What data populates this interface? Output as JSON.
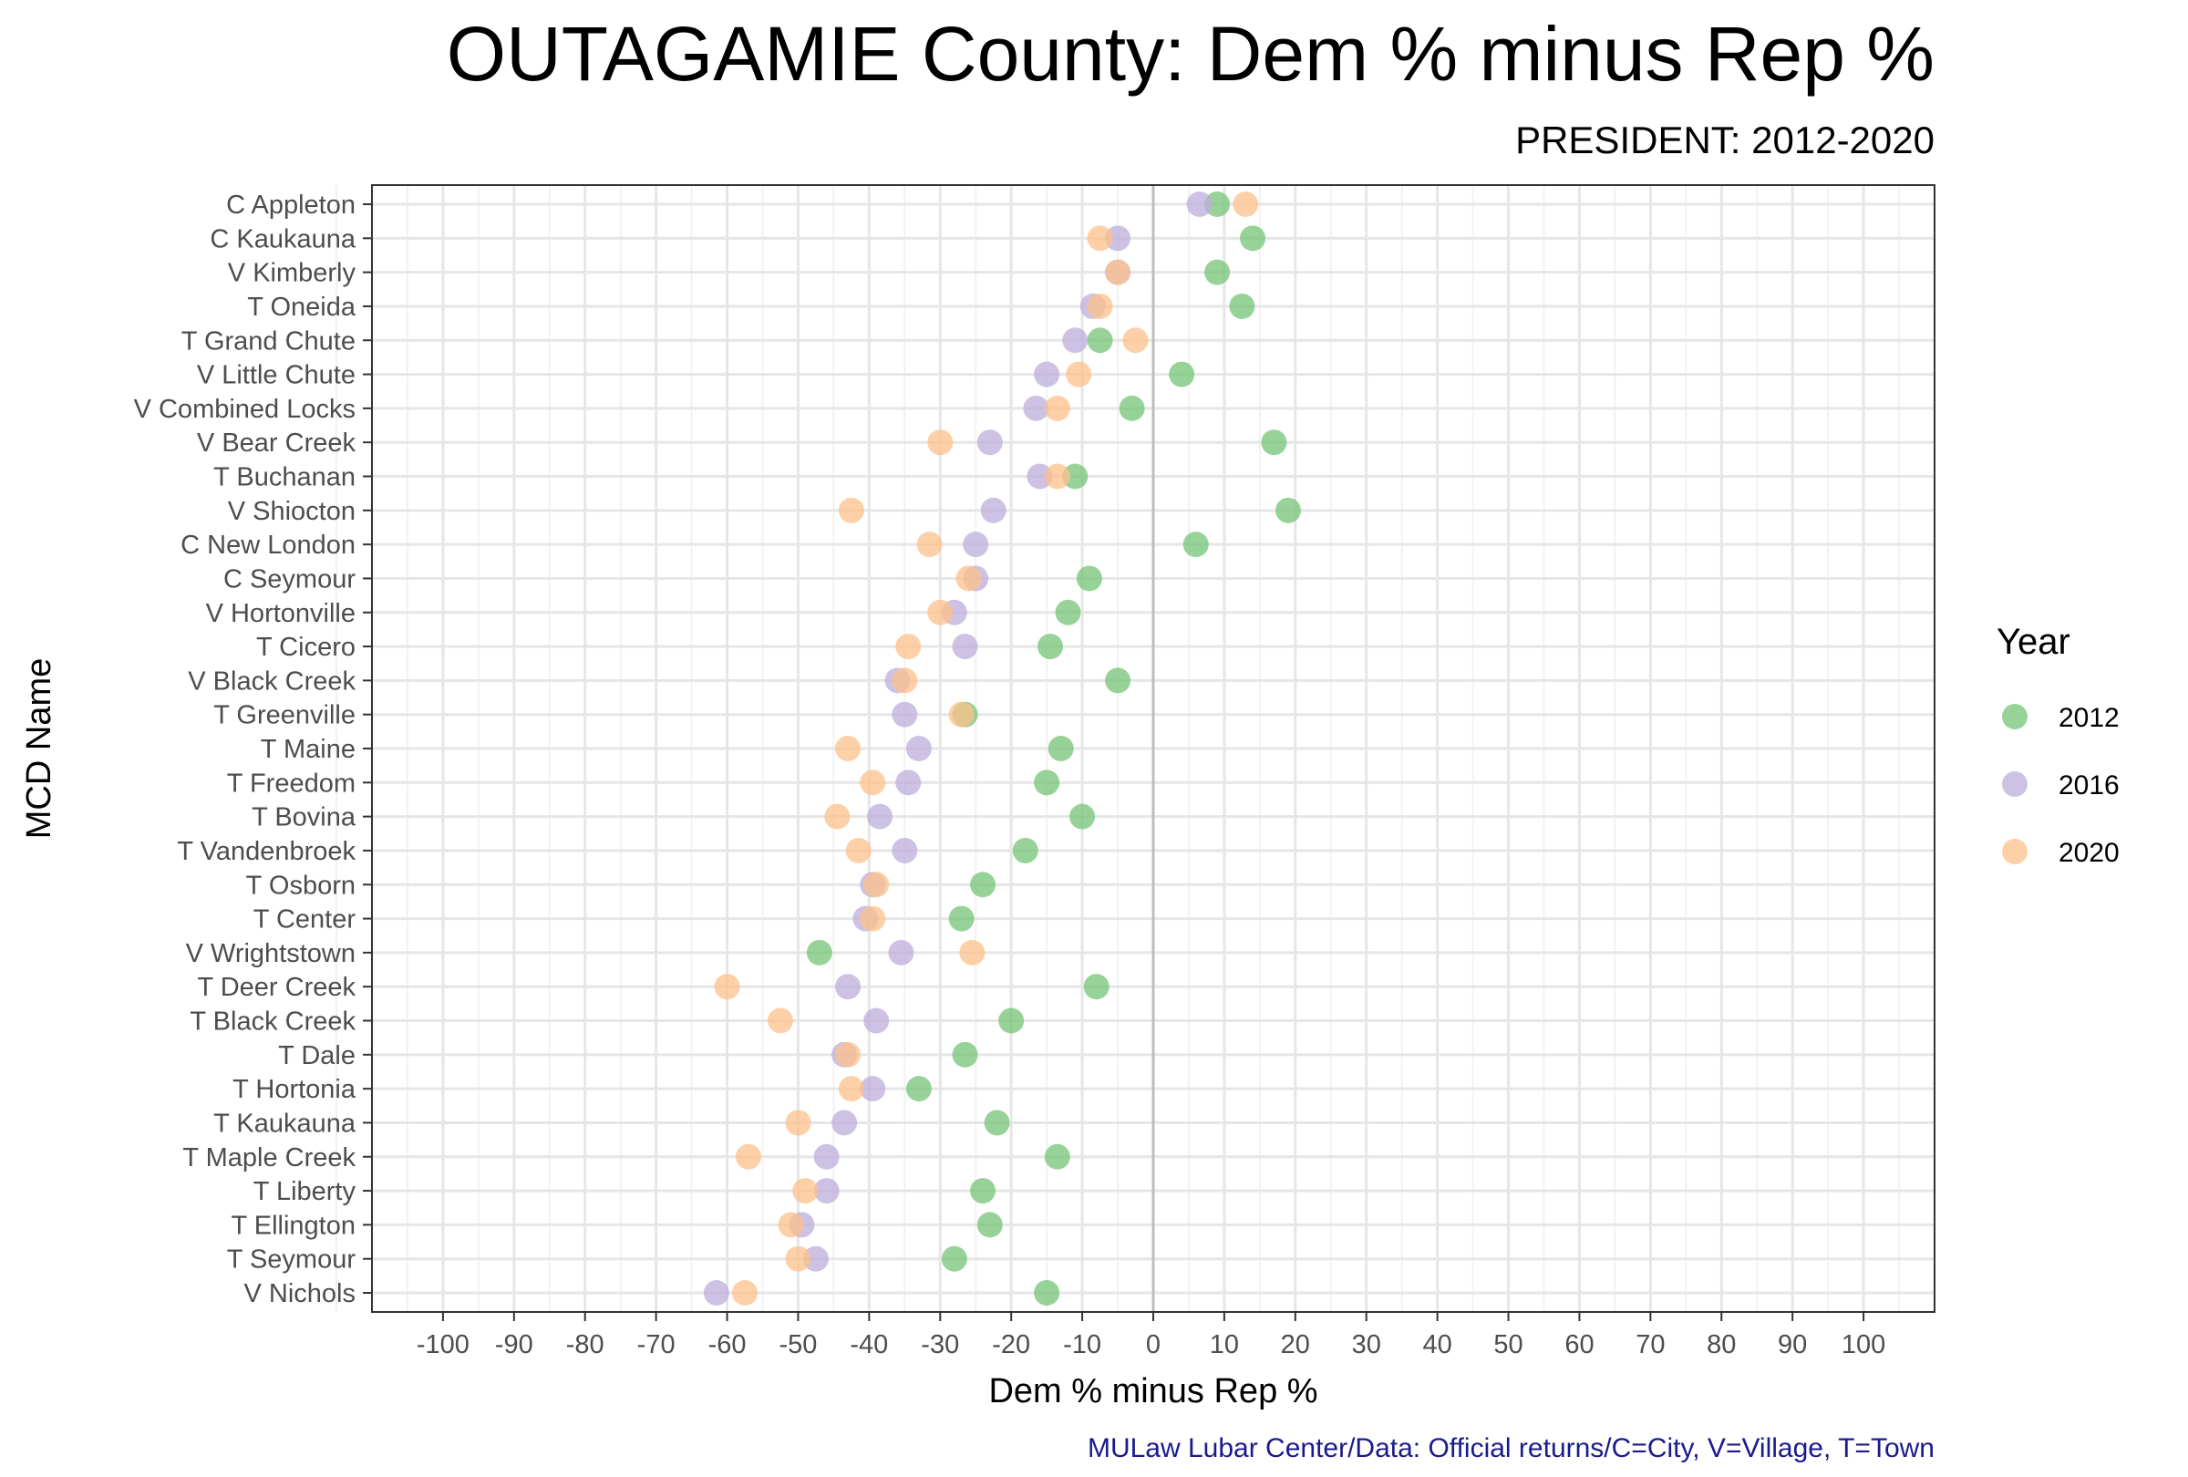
{
  "chart_data": {
    "type": "scatter",
    "title": "OUTAGAMIE County: Dem % minus Rep %",
    "subtitle": "PRESIDENT: 2012-2020",
    "xlabel": "Dem % minus Rep %",
    "ylabel": "MCD Name",
    "caption": "MULaw Lubar Center/Data: Official returns/C=City, V=Village, T=Town",
    "xlim": [
      -110,
      110
    ],
    "x_ticks": [
      -100,
      -90,
      -80,
      -70,
      -60,
      -50,
      -40,
      -30,
      -20,
      -10,
      0,
      10,
      20,
      30,
      40,
      50,
      60,
      70,
      80,
      90,
      100
    ],
    "grid": true,
    "reference_line_x": 0,
    "legend": {
      "title": "Year",
      "position": "right"
    },
    "categories": [
      "C Appleton",
      "C Kaukauna",
      "V Kimberly",
      "T Oneida",
      "T Grand Chute",
      "V Little Chute",
      "V Combined Locks",
      "V Bear Creek",
      "T Buchanan",
      "V Shiocton",
      "C New London",
      "C Seymour",
      "V Hortonville",
      "T Cicero",
      "V Black Creek",
      "T Greenville",
      "T Maine",
      "T Freedom",
      "T Bovina",
      "T Vandenbroek",
      "T Osborn",
      "T Center",
      "V Wrightstown",
      "T Deer Creek",
      "T Black Creek",
      "T Dale",
      "T Hortonia",
      "T Kaukauna",
      "T Maple Creek",
      "T Liberty",
      "T Ellington",
      "T Seymour",
      "V Nichols"
    ],
    "series": [
      {
        "name": "2012",
        "color": "#74c476",
        "values": [
          9,
          14,
          9,
          12.5,
          -7.5,
          4,
          -3,
          17,
          -11,
          19,
          6,
          -9,
          -12,
          -14.5,
          -5,
          -26.5,
          -13,
          -15,
          -10,
          -18,
          -24,
          -27,
          -47,
          -8,
          -20,
          -26.5,
          -33,
          -22,
          -13.5,
          -24,
          -23,
          -28,
          -15
        ]
      },
      {
        "name": "2016",
        "color": "#bcaedb",
        "values": [
          6.5,
          -5,
          -5,
          -8.5,
          -11,
          -15,
          -16.5,
          -23,
          -16,
          -22.5,
          -25,
          -25,
          -28,
          -26.5,
          -36,
          -35,
          -33,
          -34.5,
          -38.5,
          -35,
          -39.5,
          -40.5,
          -35.5,
          -43,
          -39,
          -43.5,
          -39.5,
          -43.5,
          -46,
          -46,
          -49.5,
          -47.5,
          -61.5
        ]
      },
      {
        "name": "2020",
        "color": "#fdc08a",
        "values": [
          13,
          -7.5,
          -5,
          -7.5,
          -2.5,
          -10.5,
          -13.5,
          -30,
          -13.5,
          -42.5,
          -31.5,
          -26,
          -30,
          -34.5,
          -35,
          -27,
          -43,
          -39.5,
          -44.5,
          -41.5,
          -39,
          -39.5,
          -25.5,
          -60,
          -52.5,
          -43,
          -42.5,
          -50,
          -57,
          -49,
          -51,
          -50,
          -57.5
        ]
      }
    ]
  }
}
